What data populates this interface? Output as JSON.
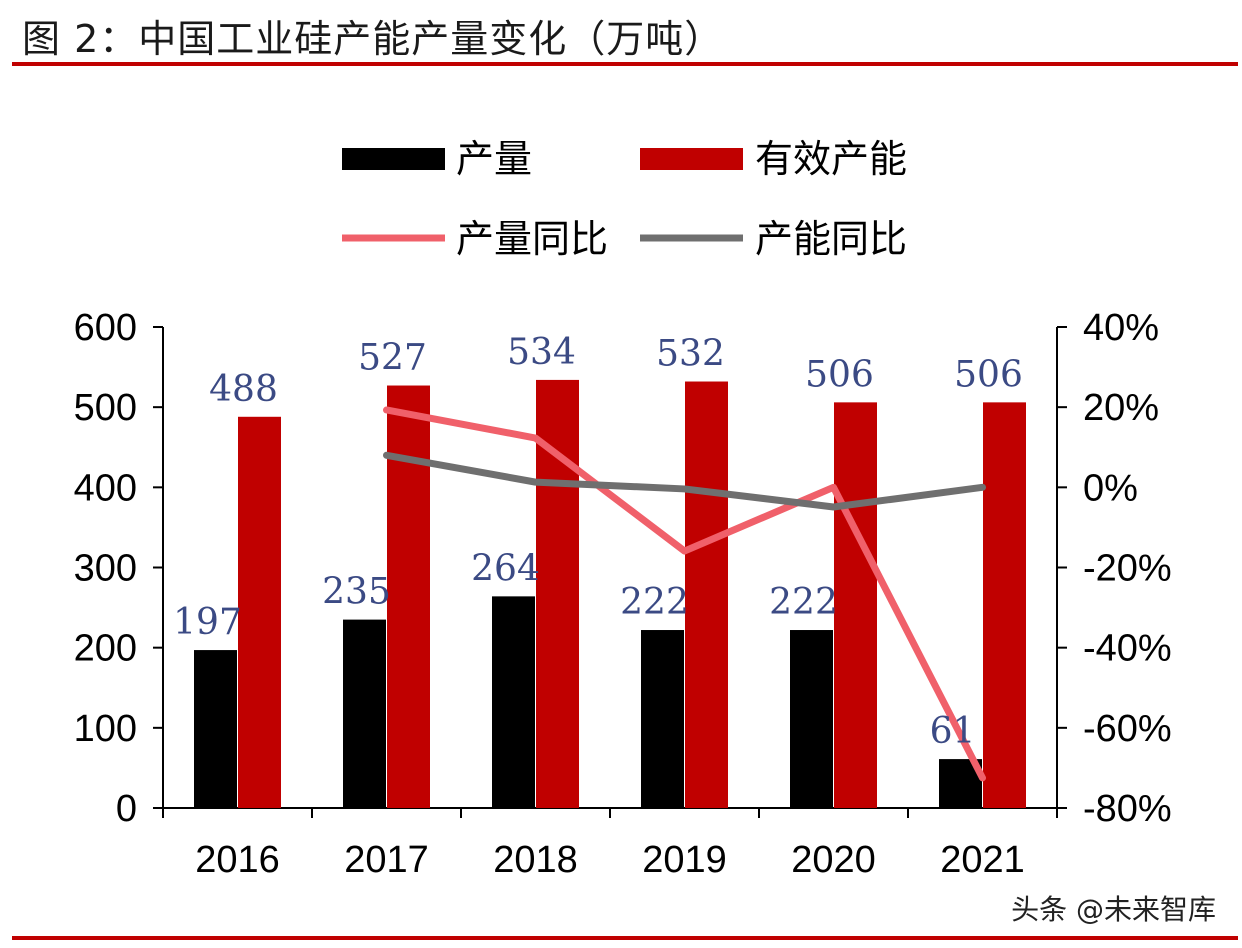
{
  "title": "图 2：中国工业硅产能产量变化（万吨）",
  "watermark": "头条 @未来智库",
  "chart_data": {
    "type": "bar",
    "categories": [
      "2016",
      "2017",
      "2018",
      "2019",
      "2020",
      "2021"
    ],
    "series": [
      {
        "name": "产量",
        "kind": "bar",
        "axis": "left",
        "color": "#000000",
        "values": [
          197,
          235,
          264,
          222,
          222,
          61
        ]
      },
      {
        "name": "有效产能",
        "kind": "bar",
        "axis": "left",
        "color": "#c00000",
        "values": [
          488,
          527,
          534,
          532,
          506,
          506
        ]
      },
      {
        "name": "产量同比",
        "kind": "line",
        "axis": "right",
        "color": "#f0606a",
        "values": [
          null,
          19.3,
          12.3,
          -15.9,
          0.0,
          -72.5
        ]
      },
      {
        "name": "产能同比",
        "kind": "line",
        "axis": "right",
        "color": "#6f6f6f",
        "values": [
          null,
          8.0,
          1.3,
          -0.4,
          -4.9,
          0.0
        ]
      }
    ],
    "y_left": {
      "min": 0,
      "max": 600,
      "ticks": [
        "0",
        "100",
        "200",
        "300",
        "400",
        "500",
        "600"
      ]
    },
    "y_right": {
      "min": -80,
      "max": 40,
      "ticks": [
        "-80%",
        "-60%",
        "-40%",
        "-20%",
        "0%",
        "20%",
        "40%"
      ]
    },
    "legend_position": "top",
    "grid": false
  }
}
